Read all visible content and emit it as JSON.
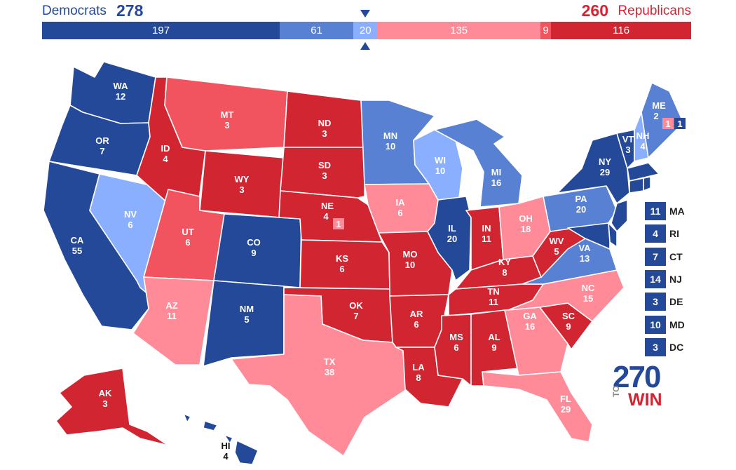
{
  "header": {
    "dem_label": "Democrats",
    "dem_total": "278",
    "rep_total": "260",
    "rep_label": "Republicans"
  },
  "bar": [
    {
      "value": 197,
      "label": "197",
      "color": "#244999"
    },
    {
      "value": 61,
      "label": "61",
      "color": "#5881d4"
    },
    {
      "value": 20,
      "label": "20",
      "color": "#8aafff"
    },
    {
      "value": 135,
      "label": "135",
      "color": "#ff8b98"
    },
    {
      "value": 9,
      "label": "9",
      "color": "#f2545f"
    },
    {
      "value": 116,
      "label": "116",
      "color": "#d22532"
    }
  ],
  "colors": {
    "dem_safe": "#244999",
    "dem_likely": "#5881d4",
    "dem_lean": "#8aafff",
    "rep_lean": "#ff8b98",
    "rep_likely": "#f2545f",
    "rep_safe": "#d22532"
  },
  "states": {
    "WA": {
      "abbr": "WA",
      "ev": "12"
    },
    "OR": {
      "abbr": "OR",
      "ev": "7"
    },
    "CA": {
      "abbr": "CA",
      "ev": "55"
    },
    "NV": {
      "abbr": "NV",
      "ev": "6"
    },
    "ID": {
      "abbr": "ID",
      "ev": "4"
    },
    "MT": {
      "abbr": "MT",
      "ev": "3"
    },
    "WY": {
      "abbr": "WY",
      "ev": "3"
    },
    "UT": {
      "abbr": "UT",
      "ev": "6"
    },
    "CO": {
      "abbr": "CO",
      "ev": "9"
    },
    "AZ": {
      "abbr": "AZ",
      "ev": "11"
    },
    "NM": {
      "abbr": "NM",
      "ev": "5"
    },
    "ND": {
      "abbr": "ND",
      "ev": "3"
    },
    "SD": {
      "abbr": "SD",
      "ev": "3"
    },
    "NE": {
      "abbr": "NE",
      "ev": "4"
    },
    "KS": {
      "abbr": "KS",
      "ev": "6"
    },
    "OK": {
      "abbr": "OK",
      "ev": "7"
    },
    "TX": {
      "abbr": "TX",
      "ev": "38"
    },
    "MN": {
      "abbr": "MN",
      "ev": "10"
    },
    "IA": {
      "abbr": "IA",
      "ev": "6"
    },
    "MO": {
      "abbr": "MO",
      "ev": "10"
    },
    "AR": {
      "abbr": "AR",
      "ev": "6"
    },
    "LA": {
      "abbr": "LA",
      "ev": "8"
    },
    "WI": {
      "abbr": "WI",
      "ev": "10"
    },
    "IL": {
      "abbr": "IL",
      "ev": "20"
    },
    "MI": {
      "abbr": "MI",
      "ev": "16"
    },
    "IN": {
      "abbr": "IN",
      "ev": "11"
    },
    "OH": {
      "abbr": "OH",
      "ev": "18"
    },
    "KY": {
      "abbr": "KY",
      "ev": "8"
    },
    "TN": {
      "abbr": "TN",
      "ev": "11"
    },
    "MS": {
      "abbr": "MS",
      "ev": "6"
    },
    "AL": {
      "abbr": "AL",
      "ev": "9"
    },
    "GA": {
      "abbr": "GA",
      "ev": "16"
    },
    "FL": {
      "abbr": "FL",
      "ev": "29"
    },
    "SC": {
      "abbr": "SC",
      "ev": "9"
    },
    "NC": {
      "abbr": "NC",
      "ev": "15"
    },
    "VA": {
      "abbr": "VA",
      "ev": "13"
    },
    "WV": {
      "abbr": "WV",
      "ev": "5"
    },
    "PA": {
      "abbr": "PA",
      "ev": "20"
    },
    "NY": {
      "abbr": "NY",
      "ev": "29"
    },
    "VT": {
      "abbr": "VT",
      "ev": "3"
    },
    "NH": {
      "abbr": "NH",
      "ev": "4"
    },
    "ME": {
      "abbr": "ME",
      "ev": "2"
    },
    "AK": {
      "abbr": "AK",
      "ev": "3"
    },
    "HI": {
      "abbr": "HI",
      "ev": "4"
    }
  },
  "ne_district": "1",
  "me_districts": [
    "1",
    "1"
  ],
  "small_states": [
    {
      "abbr": "MA",
      "ev": "11"
    },
    {
      "abbr": "RI",
      "ev": "4"
    },
    {
      "abbr": "CT",
      "ev": "7"
    },
    {
      "abbr": "NJ",
      "ev": "14"
    },
    {
      "abbr": "DE",
      "ev": "3"
    },
    {
      "abbr": "MD",
      "ev": "10"
    },
    {
      "abbr": "DC",
      "ev": "3"
    }
  ],
  "logo": {
    "number": "270",
    "to": "TO",
    "win": "WIN"
  }
}
